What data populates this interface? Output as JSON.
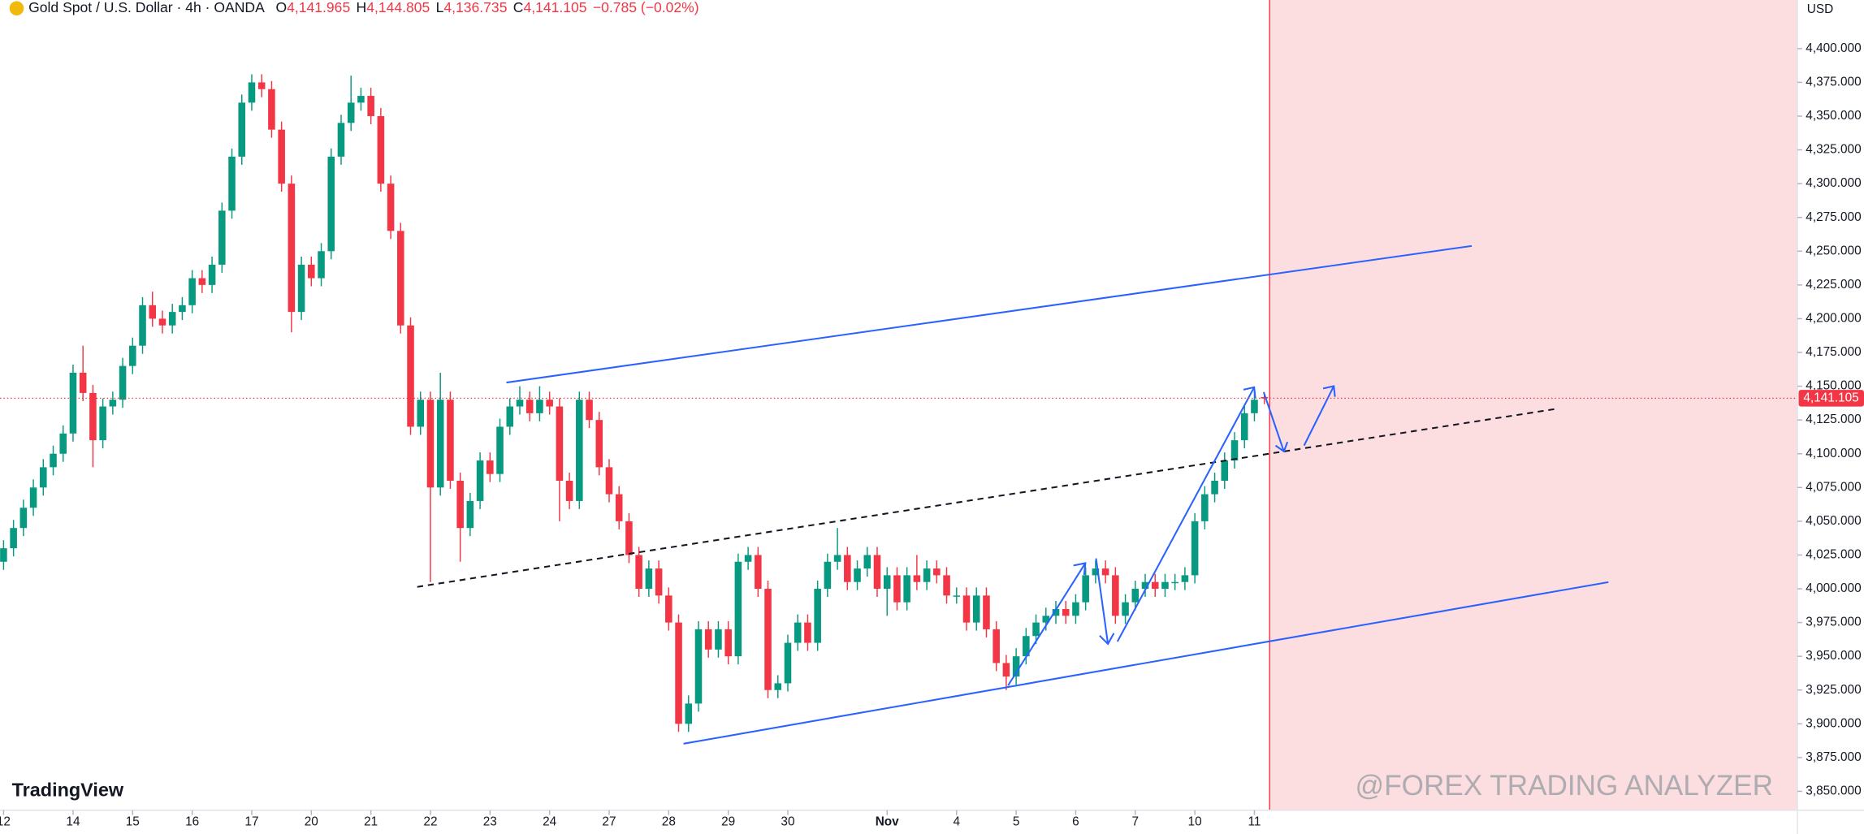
{
  "header": {
    "symbol": "Gold Spot / U.S. Dollar · 4h · OANDA",
    "ohlc": [
      {
        "key": "O",
        "value": "4,141.965"
      },
      {
        "key": "H",
        "value": "4,144.805"
      },
      {
        "key": "L",
        "value": "4,136.735"
      },
      {
        "key": "C",
        "value": "4,141.105"
      }
    ],
    "change": "−0.785 (−0.02%)"
  },
  "currency": "USD",
  "logo": "TradingView",
  "watermark": "@FOREX TRADING ANALYZER",
  "chart_data": {
    "type": "candlestick",
    "up_color": "#089981",
    "down_color": "#f23645",
    "ylim": [
      3836,
      4436
    ],
    "xlim": [
      -0.36,
      180.7
    ],
    "yticks": [
      {
        "value": 3850,
        "label": "3,850.000"
      },
      {
        "value": 3875,
        "label": "3,875.000"
      },
      {
        "value": 3900,
        "label": "3,900.000"
      },
      {
        "value": 3925,
        "label": "3,925.000"
      },
      {
        "value": 3950,
        "label": "3,950.000"
      },
      {
        "value": 3975,
        "label": "3,975.000"
      },
      {
        "value": 4000,
        "label": "4,000.000"
      },
      {
        "value": 4025,
        "label": "4,025.000"
      },
      {
        "value": 4050,
        "label": "4,050.000"
      },
      {
        "value": 4075,
        "label": "4,075.000"
      },
      {
        "value": 4100,
        "label": "4,100.000"
      },
      {
        "value": 4125,
        "label": "4,125.000"
      },
      {
        "value": 4150,
        "label": "4,150.000"
      },
      {
        "value": 4175,
        "label": "4,175.000"
      },
      {
        "value": 4200,
        "label": "4,200.000"
      },
      {
        "value": 4225,
        "label": "4,225.000"
      },
      {
        "value": 4250,
        "label": "4,250.000"
      },
      {
        "value": 4275,
        "label": "4,275.000"
      },
      {
        "value": 4300,
        "label": "4,300.000"
      },
      {
        "value": 4325,
        "label": "4,325.000"
      },
      {
        "value": 4350,
        "label": "4,350.000"
      },
      {
        "value": 4375,
        "label": "4,375.000"
      },
      {
        "value": 4400,
        "label": "4,400.000"
      }
    ],
    "xticks": [
      {
        "value": 0,
        "label": "12"
      },
      {
        "value": 7,
        "label": "14"
      },
      {
        "value": 13,
        "label": "15"
      },
      {
        "value": 19,
        "label": "16"
      },
      {
        "value": 25,
        "label": "17"
      },
      {
        "value": 31,
        "label": "20"
      },
      {
        "value": 37,
        "label": "21"
      },
      {
        "value": 43,
        "label": "22"
      },
      {
        "value": 49,
        "label": "23"
      },
      {
        "value": 55,
        "label": "24"
      },
      {
        "value": 61,
        "label": "27"
      },
      {
        "value": 67,
        "label": "28"
      },
      {
        "value": 73,
        "label": "29"
      },
      {
        "value": 79,
        "label": "30"
      },
      {
        "value": 89,
        "label": "Nov"
      },
      {
        "value": 96,
        "label": "4"
      },
      {
        "value": 102,
        "label": "5"
      },
      {
        "value": 108,
        "label": "6"
      },
      {
        "value": 114,
        "label": "7"
      },
      {
        "value": 120,
        "label": "10"
      },
      {
        "value": 126,
        "label": "11"
      }
    ],
    "last_price": {
      "value": 4141.105,
      "label": "4,141.105"
    },
    "open": [
      4020,
      4030,
      4045,
      4060,
      4075,
      4090,
      4100,
      4115,
      4160,
      4145,
      4110,
      4135,
      4140,
      4165,
      4180,
      4210,
      4200,
      4195,
      4205,
      4210,
      4230,
      4225,
      4240,
      4280,
      4320,
      4360,
      4375,
      4370,
      4340,
      4300,
      4205,
      4240,
      4230,
      4250,
      4320,
      4345,
      4360,
      4365,
      4350,
      4300,
      4265,
      4195,
      4120,
      4140,
      4075,
      4140,
      4080,
      4045,
      4065,
      4095,
      4085,
      4120,
      4135,
      4140,
      4130,
      4140,
      4135,
      4080,
      4065,
      4140,
      4125,
      4090,
      4070,
      4050,
      4025,
      4000,
      4015,
      3995,
      3975,
      3900,
      3915,
      3970,
      3955,
      3970,
      3950,
      4020,
      4025,
      4000,
      3925,
      3930,
      3960,
      3975,
      3960,
      4000,
      4020,
      4025,
      4005,
      4015,
      4025,
      4000,
      4010,
      3990,
      4010,
      4005,
      4015,
      4010,
      3995,
      3995,
      3975,
      3995,
      3970,
      3945,
      3935,
      3950,
      3965,
      3975,
      3980,
      3985,
      3980,
      3990,
      4010,
      4015,
      4010,
      3980,
      3990,
      4000,
      4005,
      4000,
      4005,
      4005,
      4010,
      4050,
      4070,
      4080,
      4095,
      4110,
      4130,
      4141.965
    ],
    "high": [
      4036,
      4051,
      4066,
      4081,
      4096,
      4106,
      4121,
      4166,
      4180,
      4151,
      4141,
      4146,
      4171,
      4186,
      4216,
      4220,
      4206,
      4211,
      4216,
      4236,
      4236,
      4246,
      4286,
      4326,
      4366,
      4381,
      4381,
      4376,
      4346,
      4306,
      4246,
      4246,
      4256,
      4326,
      4351,
      4380,
      4371,
      4371,
      4356,
      4306,
      4271,
      4201,
      4146,
      4146,
      4160,
      4146,
      4086,
      4071,
      4101,
      4101,
      4126,
      4141,
      4150,
      4146,
      4150,
      4146,
      4141,
      4086,
      4146,
      4146,
      4131,
      4096,
      4076,
      4056,
      4031,
      4021,
      4021,
      4001,
      3981,
      3921,
      3976,
      3976,
      3976,
      3976,
      4026,
      4031,
      4031,
      4006,
      3936,
      3966,
      3981,
      3981,
      4006,
      4026,
      4045,
      4031,
      4021,
      4031,
      4031,
      4016,
      4016,
      4016,
      4025,
      4021,
      4021,
      4016,
      4001,
      4001,
      4001,
      4001,
      3976,
      3951,
      3956,
      3971,
      3981,
      3986,
      3991,
      3991,
      3996,
      4016,
      4021,
      4021,
      4016,
      3996,
      4006,
      4011,
      4011,
      4011,
      4011,
      4016,
      4056,
      4076,
      4086,
      4101,
      4116,
      4136,
      4146,
      4144.805
    ],
    "low": [
      4014,
      4024,
      4039,
      4054,
      4069,
      4084,
      4094,
      4109,
      4139,
      4090,
      4104,
      4129,
      4134,
      4159,
      4174,
      4194,
      4189,
      4189,
      4199,
      4204,
      4219,
      4219,
      4234,
      4274,
      4314,
      4354,
      4364,
      4334,
      4294,
      4190,
      4199,
      4224,
      4224,
      4244,
      4314,
      4339,
      4354,
      4344,
      4294,
      4259,
      4189,
      4114,
      4114,
      4005,
      4069,
      4074,
      4020,
      4039,
      4059,
      4079,
      4079,
      4114,
      4129,
      4124,
      4124,
      4129,
      4050,
      4059,
      4059,
      4119,
      4084,
      4064,
      4044,
      4019,
      3994,
      3994,
      3989,
      3969,
      3894,
      3894,
      3909,
      3949,
      3949,
      3944,
      3944,
      4014,
      3994,
      3919,
      3919,
      3924,
      3954,
      3954,
      3954,
      3994,
      4014,
      3999,
      3999,
      4009,
      3994,
      3980,
      3984,
      3984,
      3999,
      3999,
      4004,
      3989,
      3989,
      3969,
      3969,
      3964,
      3939,
      3925,
      3929,
      3944,
      3959,
      3969,
      3974,
      3974,
      3974,
      3984,
      4004,
      4004,
      3974,
      3974,
      3984,
      3994,
      3994,
      3994,
      3999,
      3999,
      4004,
      4044,
      4064,
      4074,
      4089,
      4104,
      4124,
      4136.735
    ],
    "close": [
      4030,
      4045,
      4060,
      4075,
      4090,
      4100,
      4115,
      4160,
      4145,
      4110,
      4135,
      4140,
      4165,
      4180,
      4210,
      4200,
      4195,
      4205,
      4210,
      4230,
      4225,
      4240,
      4280,
      4320,
      4360,
      4375,
      4370,
      4340,
      4300,
      4205,
      4240,
      4230,
      4250,
      4320,
      4345,
      4360,
      4365,
      4350,
      4300,
      4265,
      4195,
      4120,
      4140,
      4075,
      4140,
      4080,
      4045,
      4065,
      4095,
      4085,
      4120,
      4135,
      4140,
      4130,
      4140,
      4135,
      4080,
      4065,
      4140,
      4125,
      4090,
      4070,
      4050,
      4025,
      4000,
      4015,
      3995,
      3975,
      3900,
      3915,
      3970,
      3955,
      3970,
      3950,
      4020,
      4025,
      4000,
      3925,
      3930,
      3960,
      3975,
      3960,
      4000,
      4020,
      4025,
      4005,
      4015,
      4025,
      4000,
      4010,
      3990,
      4010,
      4005,
      4015,
      4010,
      3995,
      3995,
      3975,
      3995,
      3970,
      3945,
      3935,
      3950,
      3965,
      3975,
      3980,
      3985,
      3980,
      3990,
      4010,
      4015,
      4010,
      3980,
      3990,
      4000,
      4005,
      4000,
      4005,
      4005,
      4010,
      4050,
      4070,
      4080,
      4095,
      4110,
      4130,
      4140,
      4141.105
    ]
  }
}
